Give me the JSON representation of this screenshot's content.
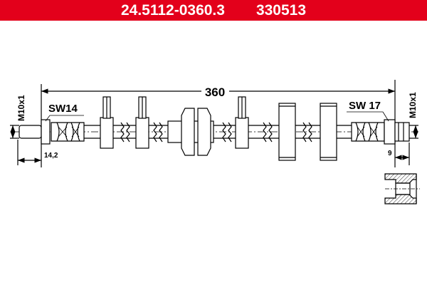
{
  "header": {
    "part_number": "24.5112-0360.3",
    "ref_number": "330513",
    "background": "#e3001b"
  },
  "drawing": {
    "length_label": "360",
    "left_fitting": {
      "wrench_size": "SW14",
      "thread": "M10x1",
      "length": "14,2"
    },
    "right_fitting": {
      "wrench_size": "SW 17",
      "thread": "M10x1",
      "length": "9"
    }
  }
}
